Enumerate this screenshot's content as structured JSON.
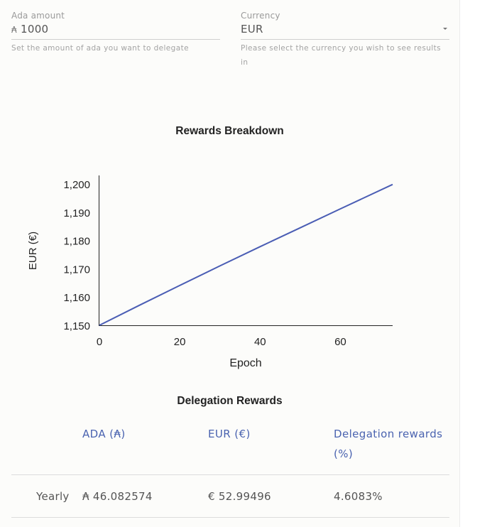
{
  "form": {
    "amount": {
      "label": "Ada amount",
      "prefix": "₳",
      "value": "1000",
      "help": "Set the amount of ada you want to delegate"
    },
    "currency": {
      "label": "Currency",
      "value": "EUR",
      "help": "Please select the currency you wish to see results in"
    }
  },
  "chart_title": "Rewards Breakdown",
  "chart_data": {
    "type": "line",
    "title": "Rewards Breakdown",
    "xlabel": "Epoch",
    "ylabel": "EUR (€)",
    "xlim": [
      0,
      73
    ],
    "ylim": [
      1150,
      1203
    ],
    "xticks": [
      0,
      20,
      40,
      60
    ],
    "yticks": [
      1150,
      1160,
      1170,
      1180,
      1190,
      1200
    ],
    "ytick_labels": [
      "1,150",
      "1,160",
      "1,170",
      "1,180",
      "1,190",
      "1,200"
    ],
    "grid": false,
    "series": [
      {
        "color": "#4a5db4",
        "x": [
          0,
          10,
          20,
          30,
          40,
          50,
          60,
          73
        ],
        "y": [
          1150,
          1157.1,
          1164.1,
          1171.0,
          1177.8,
          1184.5,
          1191.2,
          1199.8
        ]
      }
    ]
  },
  "rewards_title": "Delegation Rewards",
  "table": {
    "headers": [
      "ADA (₳)",
      "EUR (€)",
      "Delegation rewards (%)"
    ],
    "rows": [
      {
        "period": "Yearly",
        "ada": "₳ 46.082574",
        "eur": "€ 52.99496",
        "pct": "4.6083%"
      }
    ]
  }
}
